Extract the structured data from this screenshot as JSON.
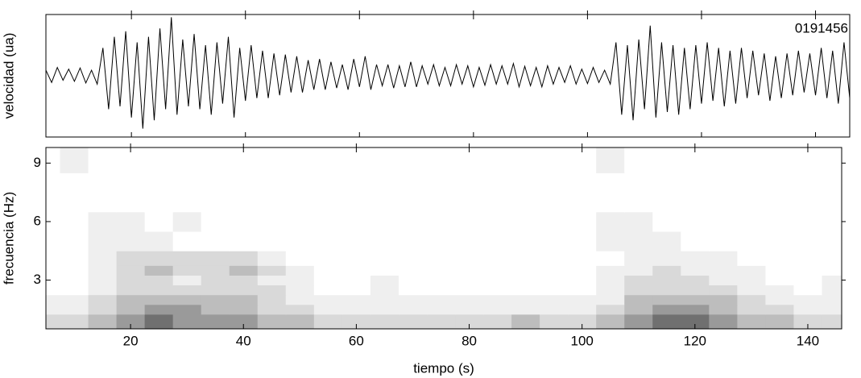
{
  "chart_data": [
    {
      "type": "line",
      "ylabel": "velocidad (ua)",
      "annotation": "0191456",
      "color": "#000000",
      "show_tick_labels": false,
      "xlim": [
        5,
        146
      ],
      "xticks": [
        20,
        40,
        60,
        80,
        100,
        120,
        140
      ],
      "ylim": [
        -1.1,
        1.1
      ],
      "x": [
        5,
        6,
        7,
        8,
        9,
        10,
        11,
        12,
        13,
        14,
        15,
        16,
        17,
        18,
        19,
        20,
        21,
        22,
        23,
        24,
        25,
        26,
        27,
        28,
        29,
        30,
        31,
        32,
        33,
        34,
        35,
        36,
        37,
        38,
        39,
        40,
        41,
        42,
        43,
        44,
        45,
        46,
        47,
        48,
        49,
        50,
        51,
        52,
        53,
        54,
        55,
        56,
        57,
        58,
        59,
        60,
        61,
        62,
        63,
        64,
        65,
        66,
        67,
        68,
        69,
        70,
        71,
        72,
        73,
        74,
        75,
        76,
        77,
        78,
        79,
        80,
        81,
        82,
        83,
        84,
        85,
        86,
        87,
        88,
        89,
        90,
        91,
        92,
        93,
        94,
        95,
        96,
        97,
        98,
        99,
        100,
        101,
        102,
        103,
        104,
        105,
        106,
        107,
        108,
        109,
        110,
        111,
        112,
        113,
        114,
        115,
        116,
        117,
        118,
        119,
        120,
        121,
        122,
        123,
        124,
        125,
        126,
        127,
        128,
        129,
        130,
        131,
        132,
        133,
        134,
        135,
        136,
        137,
        138,
        139,
        140,
        141,
        142,
        143,
        144,
        145,
        146
      ],
      "values": [
        0.1,
        -0.12,
        0.15,
        -0.08,
        0.12,
        -0.1,
        0.14,
        -0.13,
        0.1,
        -0.15,
        0.5,
        -0.6,
        0.7,
        -0.55,
        0.8,
        -0.75,
        0.6,
        -0.95,
        0.7,
        -0.8,
        0.85,
        -0.6,
        1.05,
        -0.7,
        0.65,
        -0.55,
        0.75,
        -0.6,
        0.55,
        -0.7,
        0.6,
        -0.5,
        0.7,
        -0.75,
        0.5,
        -0.45,
        0.55,
        -0.4,
        0.45,
        -0.4,
        0.4,
        -0.35,
        0.38,
        -0.3,
        0.35,
        -0.3,
        0.28,
        -0.25,
        0.3,
        -0.25,
        0.25,
        -0.22,
        0.2,
        -0.25,
        0.3,
        -0.2,
        0.35,
        -0.25,
        0.2,
        -0.18,
        0.2,
        -0.22,
        0.18,
        -0.2,
        0.25,
        -0.2,
        0.18,
        -0.15,
        0.2,
        -0.18,
        0.15,
        -0.18,
        0.2,
        -0.15,
        0.18,
        -0.2,
        0.15,
        -0.17,
        0.2,
        -0.15,
        0.18,
        -0.15,
        0.22,
        -0.2,
        0.17,
        -0.18,
        0.15,
        -0.2,
        0.18,
        -0.15,
        0.15,
        -0.12,
        0.18,
        -0.15,
        0.12,
        -0.14,
        0.15,
        -0.12,
        0.1,
        -0.15,
        0.6,
        -0.7,
        0.55,
        -0.8,
        0.65,
        -0.6,
        0.9,
        -0.75,
        0.6,
        -0.65,
        0.55,
        -0.7,
        0.5,
        -0.6,
        0.55,
        -0.5,
        0.6,
        -0.45,
        0.5,
        -0.55,
        0.45,
        -0.5,
        0.5,
        -0.4,
        0.45,
        -0.35,
        0.4,
        -0.45,
        0.35,
        -0.4,
        0.4,
        -0.35,
        0.45,
        -0.3,
        0.4,
        -0.35,
        0.5,
        -0.4,
        0.45,
        -0.5,
        0.6,
        -0.4
      ]
    },
    {
      "type": "heatmap",
      "xlabel": "tiempo (s)",
      "ylabel": "frecuencia (Hz)",
      "show_tick_labels": true,
      "xlim": [
        5,
        146
      ],
      "xticks": [
        20,
        40,
        60,
        80,
        100,
        120,
        140
      ],
      "ylim": [
        0.5,
        9.8
      ],
      "yticks": [
        3,
        6,
        9
      ],
      "level_colors": [
        "#ffffff",
        "#efefef",
        "#d9d9d9",
        "#bdbdbd",
        "#9a9a9a",
        "#707070"
      ],
      "x": [
        5,
        10,
        15,
        20,
        25,
        30,
        35,
        40,
        45,
        50,
        55,
        60,
        65,
        70,
        75,
        80,
        85,
        90,
        95,
        100,
        105,
        110,
        115,
        120,
        125,
        130,
        135,
        140,
        145
      ],
      "y": [
        1,
        1.5,
        2,
        2.5,
        3,
        3.5,
        4,
        5,
        6,
        7,
        8,
        9
      ],
      "z": [
        [
          2,
          2,
          3,
          4,
          5,
          4,
          4,
          4,
          3,
          3,
          2,
          2,
          2,
          2,
          2,
          2,
          2,
          3,
          2,
          2,
          3,
          4,
          5,
          5,
          4,
          3,
          3,
          2,
          2
        ],
        [
          1,
          1,
          2,
          3,
          4,
          4,
          3,
          3,
          2,
          2,
          1,
          1,
          1,
          1,
          1,
          1,
          1,
          1,
          1,
          1,
          2,
          3,
          4,
          4,
          3,
          2,
          2,
          1,
          1
        ],
        [
          1,
          1,
          2,
          3,
          3,
          3,
          3,
          3,
          2,
          1,
          1,
          1,
          1,
          1,
          1,
          1,
          1,
          1,
          1,
          1,
          1,
          3,
          3,
          3,
          3,
          2,
          1,
          1,
          1
        ],
        [
          0,
          0,
          1,
          2,
          2,
          2,
          2,
          2,
          2,
          1,
          0,
          0,
          1,
          0,
          0,
          0,
          0,
          0,
          0,
          0,
          1,
          2,
          2,
          2,
          2,
          1,
          1,
          0,
          1
        ],
        [
          0,
          0,
          1,
          2,
          2,
          1,
          2,
          2,
          1,
          1,
          0,
          0,
          1,
          0,
          0,
          0,
          0,
          0,
          0,
          0,
          1,
          2,
          2,
          2,
          1,
          1,
          0,
          0,
          1
        ],
        [
          0,
          0,
          1,
          2,
          3,
          2,
          2,
          3,
          2,
          1,
          0,
          0,
          0,
          0,
          0,
          0,
          0,
          0,
          0,
          0,
          1,
          1,
          2,
          1,
          1,
          1,
          0,
          0,
          0
        ],
        [
          0,
          0,
          1,
          2,
          2,
          2,
          2,
          2,
          1,
          0,
          0,
          0,
          0,
          0,
          0,
          0,
          0,
          0,
          0,
          0,
          0,
          1,
          1,
          1,
          1,
          0,
          0,
          0,
          0
        ],
        [
          0,
          0,
          1,
          1,
          1,
          0,
          0,
          0,
          0,
          0,
          0,
          0,
          0,
          0,
          0,
          0,
          0,
          0,
          0,
          0,
          1,
          1,
          1,
          0,
          0,
          0,
          0,
          0,
          0
        ],
        [
          0,
          0,
          1,
          1,
          0,
          1,
          0,
          0,
          0,
          0,
          0,
          0,
          0,
          0,
          0,
          0,
          0,
          0,
          0,
          0,
          1,
          1,
          0,
          0,
          0,
          0,
          0,
          0,
          0
        ],
        [
          0,
          0,
          0,
          0,
          0,
          0,
          0,
          0,
          0,
          0,
          0,
          0,
          0,
          0,
          0,
          0,
          0,
          0,
          0,
          0,
          0,
          0,
          0,
          0,
          0,
          0,
          0,
          0,
          0
        ],
        [
          0,
          0,
          0,
          0,
          0,
          0,
          0,
          0,
          0,
          0,
          0,
          0,
          0,
          0,
          0,
          0,
          0,
          0,
          0,
          0,
          0,
          0,
          0,
          0,
          0,
          0,
          0,
          0,
          0
        ],
        [
          0,
          1,
          0,
          0,
          0,
          0,
          0,
          0,
          0,
          0,
          0,
          0,
          0,
          0,
          0,
          0,
          0,
          0,
          0,
          0,
          1,
          0,
          0,
          0,
          0,
          0,
          0,
          0,
          0
        ]
      ]
    }
  ]
}
